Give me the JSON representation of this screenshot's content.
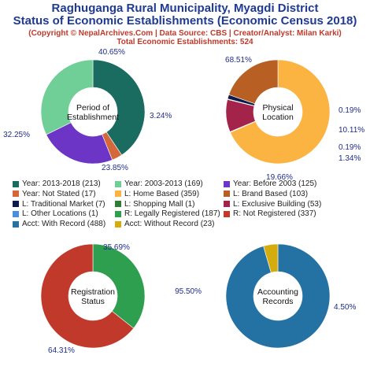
{
  "header": {
    "title_line1": "Raghuganga Rural Municipality, Myagdi District",
    "title_line2": "Status of Economic Establishments (Economic Census 2018)",
    "copyright": "(Copyright © NepalArchives.Com | Data Source: CBS | Creator/Analyst: Milan Karki)",
    "total": "Total Economic Establishments: 524"
  },
  "chart_data": [
    {
      "type": "pie",
      "center_label": [
        "Period of",
        "Establishment"
      ],
      "slices": [
        {
          "label": "Year: 2013-2018",
          "count": 213,
          "percent": 40.65,
          "percent_label": "40.65%",
          "color": "#1a6b60"
        },
        {
          "label": "Year: Not Stated",
          "count": 17,
          "percent": 3.24,
          "percent_label": "3.24%",
          "color": "#d4683a"
        },
        {
          "label": "Year: Before 2003",
          "count": 125,
          "percent": 23.85,
          "percent_label": "23.85%",
          "color": "#6c35c6"
        },
        {
          "label": "Year: 2003-2013",
          "count": 169,
          "percent": 32.25,
          "percent_label": "32.25%",
          "color": "#6fcf97"
        }
      ]
    },
    {
      "type": "pie",
      "center_label": [
        "Physical",
        "Location"
      ],
      "slices": [
        {
          "label": "L: Home Based",
          "count": 359,
          "percent": 68.51,
          "percent_label": "68.51%",
          "color": "#fbb441"
        },
        {
          "label": "L: Other Locations",
          "count": 1,
          "percent": 0.19,
          "percent_label": "0.19%",
          "color": "#4a8fd9"
        },
        {
          "label": "L: Exclusive Building",
          "count": 53,
          "percent": 10.11,
          "percent_label": "10.11%",
          "color": "#a3234a"
        },
        {
          "label": "L: Shopping Mall",
          "count": 1,
          "percent": 0.19,
          "percent_label": "0.19%",
          "color": "#2e7d32"
        },
        {
          "label": "L: Traditional Market",
          "count": 7,
          "percent": 1.34,
          "percent_label": "1.34%",
          "color": "#0d1b4c"
        },
        {
          "label": "L: Brand Based",
          "count": 103,
          "percent": 19.66,
          "percent_label": "19.66%",
          "color": "#b85f23"
        }
      ]
    },
    {
      "type": "pie",
      "center_label": [
        "Registration",
        "Status"
      ],
      "slices": [
        {
          "label": "R: Legally Registered",
          "count": 187,
          "percent": 35.69,
          "percent_label": "35.69%",
          "color": "#2e9e4f"
        },
        {
          "label": "R: Not Registered",
          "count": 337,
          "percent": 64.31,
          "percent_label": "64.31%",
          "color": "#c0392b"
        }
      ]
    },
    {
      "type": "pie",
      "center_label": [
        "Accounting",
        "Records"
      ],
      "slices": [
        {
          "label": "Acct: With Record",
          "count": 488,
          "percent": 95.5,
          "percent_label": "95.50%",
          "color": "#2471a3"
        },
        {
          "label": "Acct: Without Record",
          "count": 23,
          "percent": 4.5,
          "percent_label": "4.50%",
          "color": "#d4ac0d"
        }
      ]
    }
  ],
  "legend": [
    {
      "text": "Year: 2013-2018 (213)",
      "color": "#1a6b60"
    },
    {
      "text": "Year: 2003-2013 (169)",
      "color": "#6fcf97"
    },
    {
      "text": "Year: Before 2003 (125)",
      "color": "#6c35c6"
    },
    {
      "text": "Year: Not Stated (17)",
      "color": "#d4683a"
    },
    {
      "text": "L: Home Based (359)",
      "color": "#fbb441"
    },
    {
      "text": "L: Brand Based (103)",
      "color": "#b85f23"
    },
    {
      "text": "L: Traditional Market (7)",
      "color": "#0d1b4c"
    },
    {
      "text": "L: Shopping Mall (1)",
      "color": "#2e7d32"
    },
    {
      "text": "L: Exclusive Building (53)",
      "color": "#a3234a"
    },
    {
      "text": "L: Other Locations (1)",
      "color": "#4a8fd9"
    },
    {
      "text": "R: Legally Registered (187)",
      "color": "#2e9e4f"
    },
    {
      "text": "R: Not Registered (337)",
      "color": "#c0392b"
    },
    {
      "text": "Acct: With Record (488)",
      "color": "#2471a3"
    },
    {
      "text": "Acct: Without Record (23)",
      "color": "#d4ac0d"
    }
  ]
}
